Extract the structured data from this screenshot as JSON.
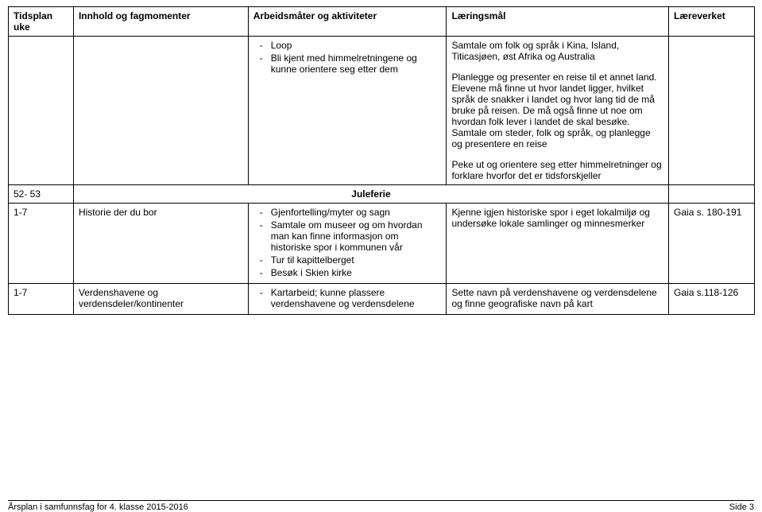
{
  "headers": {
    "tidsplan": "Tidsplan uke",
    "innhold": "Innhold og fagmomenter",
    "arbeid": "Arbeidsmåter og aktiviteter",
    "laering": "Læringsmål",
    "verk": "Læreverket"
  },
  "row1": {
    "arbeid_items": {
      "0": "Loop",
      "1": "Bli kjent med himmelretningene og kunne orientere seg etter dem"
    },
    "laering_p1": "Samtale om folk og språk i Kina, Island, Titicasjøen, øst Afrika og Australia",
    "laering_p2": "Planlegge og presenter en reise til et annet land. Elevene må finne ut hvor landet ligger, hvilket språk de snakker i landet og hvor lang tid de må bruke på reisen. De må også finne ut noe om hvordan folk lever i landet de skal besøke. Samtale om steder, folk og språk, og planlegge og presentere en reise",
    "laering_p3": "Peke ut og orientere seg etter himmelretninger og forklare hvorfor det er tidsforskjeller"
  },
  "row2": {
    "tidsplan": "52- 53",
    "label": "Juleferie"
  },
  "row3": {
    "tidsplan": "1-7",
    "innhold": "Historie der du bor",
    "arbeid_items": {
      "0": "Gjenfortelling/myter og sagn",
      "1": "Samtale om museer og om hvordan man kan finne informasjon om historiske spor i kommunen vår",
      "2": "Tur til kapittelberget",
      "3": "Besøk i Skien kirke"
    },
    "laering": "Kjenne igjen historiske spor i eget lokalmiljø og undersøke lokale samlinger og minnesmerker",
    "verk": "Gaia s. 180-191"
  },
  "row4": {
    "tidsplan": "1-7",
    "innhold": "Verdenshavene og verdensdeler/kontinenter",
    "arbeid_items": {
      "0": "Kartarbeid; kunne plassere verdenshavene og verdensdelene"
    },
    "laering": "Sette navn på verdenshavene og verdensdelene og finne geografiske navn på kart",
    "verk": "Gaia s.118-126"
  },
  "footer": {
    "left": "Årsplan i samfunnsfag for 4. klasse 2015-2016",
    "right": "Side 3"
  }
}
